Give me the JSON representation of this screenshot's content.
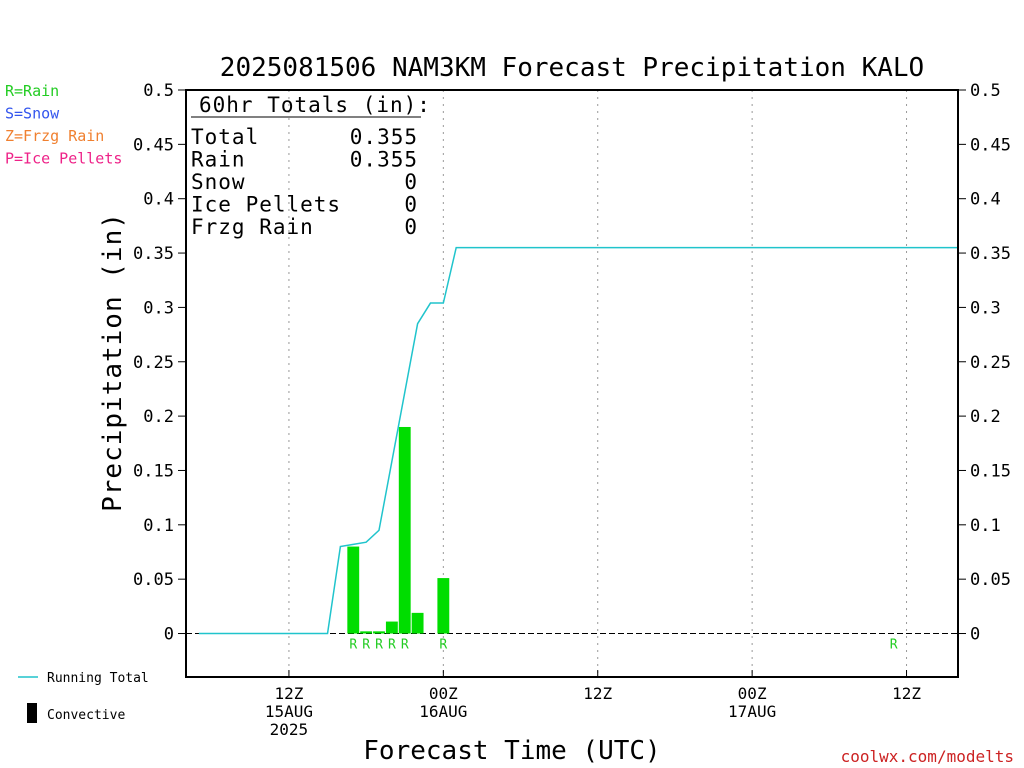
{
  "chart_data": {
    "type": "bar",
    "title": "2025081506 NAM3KM Forecast Precipitation KALO",
    "ylabel": "Precipitation (in)",
    "xlabel": "Forecast Time (UTC)",
    "ylim": [
      -0.04,
      0.5
    ],
    "y_ticks": [
      "0.5",
      "0.45",
      "0.4",
      "0.35",
      "0.3",
      "0.25",
      "0.2",
      "0.15",
      "0.1",
      "0.05",
      "0"
    ],
    "y_tick_values": [
      0.5,
      0.45,
      0.4,
      0.35,
      0.3,
      0.25,
      0.2,
      0.15,
      0.1,
      0.05,
      0
    ],
    "x_unit": "forecast hour",
    "xlim": [
      4,
      64
    ],
    "x_ticks": [
      {
        "hour": 12,
        "lines": [
          "12Z",
          "15AUG",
          "2025"
        ]
      },
      {
        "hour": 24,
        "lines": [
          "00Z",
          "16AUG"
        ]
      },
      {
        "hour": 36,
        "lines": [
          "12Z"
        ]
      },
      {
        "hour": 48,
        "lines": [
          "00Z",
          "17AUG"
        ]
      },
      {
        "hour": 60,
        "lines": [
          "12Z"
        ]
      }
    ],
    "grid": "vertical-dotted",
    "series": [
      {
        "name": "Running Total",
        "kind": "line",
        "color": "#20c4cc",
        "x": [
          5,
          15,
          16,
          17,
          18,
          19,
          22,
          23,
          24,
          25,
          26,
          59,
          64
        ],
        "y": [
          0,
          0,
          0.08,
          0.082,
          0.084,
          0.095,
          0.285,
          0.304,
          0.304,
          0.355,
          0.355,
          0.355,
          0.355
        ]
      },
      {
        "name": "Convective",
        "kind": "bar",
        "color": "#00dd00",
        "x": [
          17,
          18,
          19,
          20,
          21,
          22,
          24
        ],
        "y": [
          0.08,
          0.002,
          0.002,
          0.011,
          0.19,
          0.019,
          0.051
        ]
      }
    ],
    "type_markers": {
      "color": "#22cc22",
      "x": [
        17,
        18,
        19,
        20,
        21,
        24,
        59
      ],
      "labels": [
        "R",
        "R",
        "R",
        "R",
        "R",
        "R",
        "R"
      ]
    },
    "totals_box": {
      "header": "60hr Totals (in):",
      "rows": [
        {
          "label": "Total",
          "value": "0.355"
        },
        {
          "label": "Rain",
          "value": "0.355"
        },
        {
          "label": "Snow",
          "value": "0"
        },
        {
          "label": "Ice Pellets",
          "value": "0"
        },
        {
          "label": "Frzg Rain",
          "value": "0"
        }
      ]
    },
    "type_legend": [
      {
        "text": "R=Rain",
        "color": "#22cc22"
      },
      {
        "text": "S=Snow",
        "color": "#3355ee"
      },
      {
        "text": "Z=Frzg Rain",
        "color": "#f08030"
      },
      {
        "text": "P=Ice Pellets",
        "color": "#ee2288"
      }
    ],
    "legend": [
      {
        "text": "Running Total",
        "color": "#20c4cc",
        "shape": "line"
      },
      {
        "text": "Convective",
        "color": "#000000",
        "shape": "bar"
      }
    ],
    "credit": "coolwx.com/modelts"
  }
}
